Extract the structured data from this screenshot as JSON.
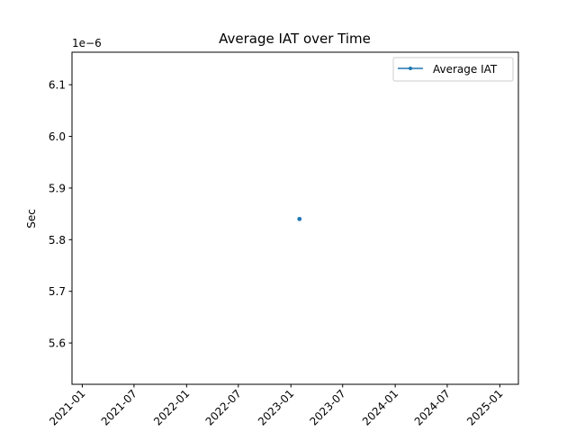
{
  "chart_data": {
    "type": "line",
    "title": "Average IAT over Time",
    "xlabel": "",
    "ylabel": "Sec",
    "y_offset_label": "1e−6",
    "x_ticks": [
      "2021-01",
      "2021-07",
      "2022-01",
      "2022-07",
      "2023-01",
      "2023-07",
      "2024-01",
      "2024-07",
      "2025-01"
    ],
    "y_ticks": [
      "5.6",
      "5.7",
      "5.8",
      "5.9",
      "6.0",
      "6.1"
    ],
    "xlim": [
      "2020-11-26",
      "2025-03-07"
    ],
    "ylim": [
      5.52,
      6.163
    ],
    "grid": false,
    "legend_position": "top-right",
    "series": [
      {
        "name": "Average IAT",
        "color": "#1f77b4",
        "marker": "point",
        "points": [
          {
            "x": "2023-01-31",
            "y": 5.84
          }
        ]
      }
    ]
  }
}
